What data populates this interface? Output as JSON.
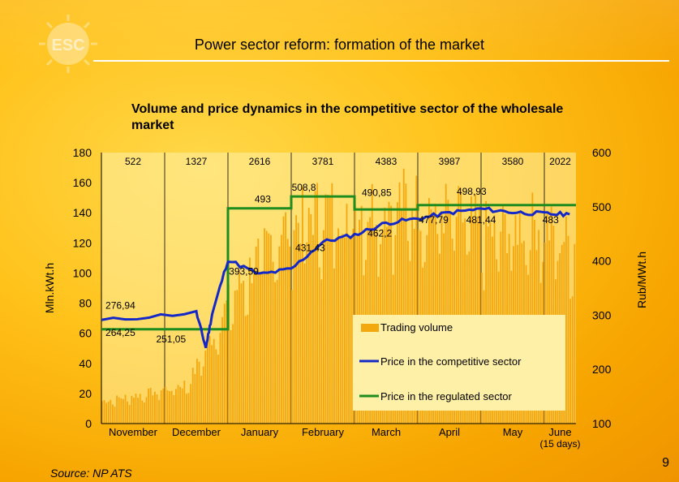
{
  "header": {
    "title": "Power sector reform: formation of the market"
  },
  "subtitle": "Volume and price dynamics in the competitive sector of the wholesale market",
  "logo_text": "ESC",
  "source": "Source: NP ATS",
  "page_number": "9",
  "colors": {
    "bars": "#f4a810",
    "competitive": "#1428c8",
    "regulated": "#1e8c1e",
    "plot_bg": "#fff0a8",
    "legend_bg": "#fff0a8"
  },
  "chart_data": {
    "type": "bar",
    "ylabel_left": "Mln.kWt.h",
    "ylabel_right": "Rub/MWt.h",
    "ylim_left": [
      0,
      180
    ],
    "ylim_right": [
      100,
      600
    ],
    "left_ticks": [
      "0",
      "20",
      "40",
      "60",
      "80",
      "100",
      "120",
      "140",
      "160",
      "180"
    ],
    "right_ticks": [
      "100",
      "200",
      "300",
      "400",
      "500",
      "600"
    ],
    "months": [
      "November",
      "December",
      "January",
      "February",
      "March",
      "April",
      "May",
      "June"
    ],
    "month_note": "(15 days)",
    "monthly_volumes": [
      "522",
      "1327",
      "2616",
      "3781",
      "4383",
      "3987",
      "3580",
      "2022"
    ],
    "daily_volume_avg": [
      15,
      20,
      27,
      85,
      127,
      143,
      145,
      150,
      142,
      128,
      135,
      119
    ],
    "competitive_price_path": [
      [
        0,
        290
      ],
      [
        1.5,
        305
      ],
      [
        1.65,
        240
      ],
      [
        1.75,
        302
      ],
      [
        2.0,
        402
      ],
      [
        2.5,
        375
      ],
      [
        3.0,
        385
      ],
      [
        3.5,
        435
      ],
      [
        4.0,
        448
      ],
      [
        4.5,
        470
      ],
      [
        5.0,
        478
      ],
      [
        5.5,
        489
      ],
      [
        6.0,
        496
      ],
      [
        6.5,
        490
      ],
      [
        7.0,
        487
      ],
      [
        7.4,
        486
      ]
    ],
    "regulated_price_steps": [
      [
        0,
        274
      ],
      [
        2.0,
        274
      ],
      [
        2.0,
        497
      ],
      [
        3.0,
        497
      ],
      [
        3.0,
        519
      ],
      [
        4.0,
        519
      ],
      [
        4.0,
        495
      ],
      [
        5.0,
        495
      ],
      [
        5.0,
        503
      ],
      [
        7.5,
        503
      ]
    ],
    "price_labels": [
      {
        "text": "276,94",
        "m": 0.3,
        "v": 312
      },
      {
        "text": "264,25",
        "m": 0.3,
        "v": 262
      },
      {
        "text": "251,05",
        "m": 1.1,
        "v": 250
      },
      {
        "text": "393,59",
        "m": 2.25,
        "v": 375
      },
      {
        "text": "493",
        "m": 2.55,
        "v": 508
      },
      {
        "text": "431,43",
        "m": 3.3,
        "v": 418
      },
      {
        "text": "508,8",
        "m": 3.2,
        "v": 530
      },
      {
        "text": "462,2",
        "m": 4.4,
        "v": 445
      },
      {
        "text": "490,85",
        "m": 4.35,
        "v": 520
      },
      {
        "text": "477,79",
        "m": 5.25,
        "v": 470
      },
      {
        "text": "498,93",
        "m": 5.85,
        "v": 522
      },
      {
        "text": "481,44",
        "m": 6.0,
        "v": 470
      },
      {
        "text": "483",
        "m": 7.1,
        "v": 470
      }
    ],
    "legend": [
      "Trading volume",
      "Price in the competitive sector",
      "Price in the regulated sector"
    ],
    "legend_position": "bottom-right"
  }
}
